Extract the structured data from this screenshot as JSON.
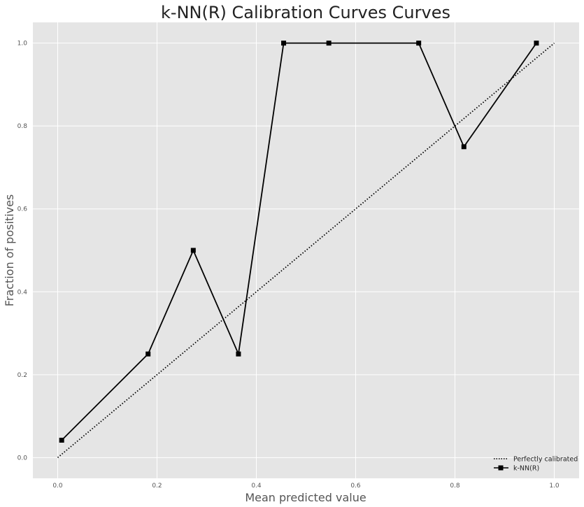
{
  "chart_data": {
    "type": "line",
    "title": "k-NN(R) Calibration Curves Curves",
    "xlabel": "Mean predicted value",
    "ylabel": "Fraction of positives",
    "xlim": [
      -0.05,
      1.05
    ],
    "ylim": [
      -0.05,
      1.05
    ],
    "xticks": [
      "0.0",
      "0.2",
      "0.4",
      "0.6",
      "0.8",
      "1.0"
    ],
    "yticks": [
      "0.0",
      "0.2",
      "0.4",
      "0.6",
      "0.8",
      "1.0"
    ],
    "grid": true,
    "legend_position": "bottom-right",
    "series": [
      {
        "name": "Perfectly calibrated",
        "style": "dotted",
        "color": "#000000",
        "x": [
          0.0,
          1.0
        ],
        "y": [
          0.0,
          1.0
        ]
      },
      {
        "name": "k-NN(R)",
        "style": "solid",
        "marker": "square",
        "color": "#000000",
        "x": [
          0.008,
          0.182,
          0.273,
          0.364,
          0.455,
          0.546,
          0.727,
          0.818,
          0.964
        ],
        "y": [
          0.042,
          0.25,
          0.5,
          0.25,
          1.0,
          1.0,
          1.0,
          0.75,
          1.0
        ]
      }
    ]
  },
  "colors": {
    "plot_background": "#e5e5e5",
    "grid": "#ffffff"
  }
}
